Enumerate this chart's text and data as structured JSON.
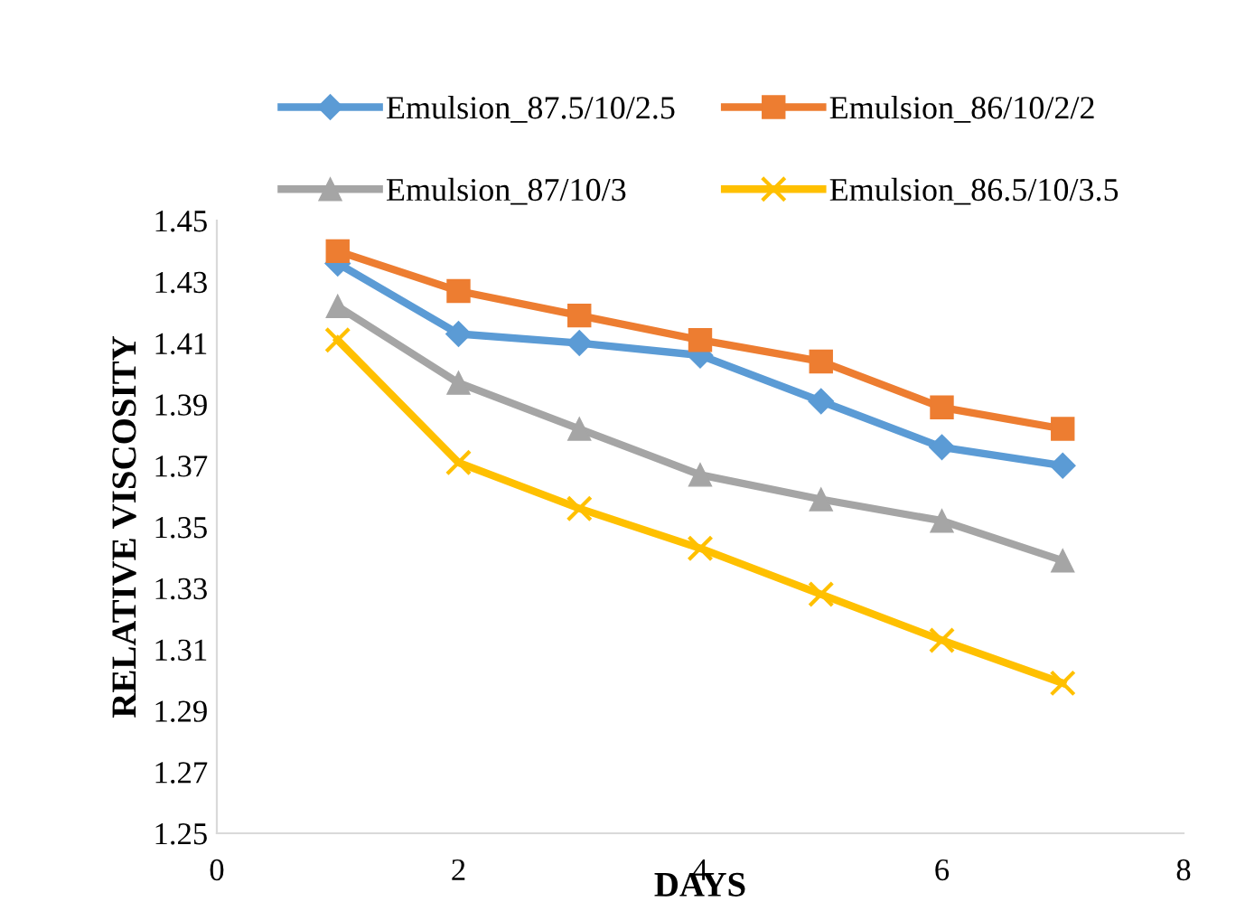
{
  "chart_data": {
    "type": "line",
    "xlabel": "DAYS",
    "ylabel": "RELATIVE VISCOSITY",
    "x": [
      1,
      2,
      3,
      4,
      5,
      6,
      7
    ],
    "series": [
      {
        "name": "Emulsion_87.5/10/2.5",
        "color": "#5b9bd5",
        "marker": "diamond",
        "values": [
          1.436,
          1.413,
          1.41,
          1.406,
          1.391,
          1.376,
          1.37
        ]
      },
      {
        "name": "Emulsion_86/10/2/2",
        "color": "#ed7d31",
        "marker": "square",
        "values": [
          1.44,
          1.427,
          1.419,
          1.411,
          1.404,
          1.389,
          1.382
        ]
      },
      {
        "name": "Emulsion_87/10/3",
        "color": "#a5a5a5",
        "marker": "triangle",
        "values": [
          1.422,
          1.397,
          1.382,
          1.367,
          1.359,
          1.352,
          1.339
        ]
      },
      {
        "name": "Emulsion_86.5/10/3.5",
        "color": "#ffc000",
        "marker": "cross",
        "values": [
          1.411,
          1.371,
          1.356,
          1.343,
          1.328,
          1.313,
          1.299
        ]
      }
    ],
    "xlim": [
      0,
      8
    ],
    "xticks": [
      0,
      2,
      4,
      6,
      8
    ],
    "ylim": [
      1.25,
      1.45
    ],
    "yticks": [
      1.25,
      1.27,
      1.29,
      1.31,
      1.33,
      1.35,
      1.37,
      1.39,
      1.41,
      1.43,
      1.45
    ],
    "grid": false,
    "legend": "top",
    "line_style": "solid"
  }
}
